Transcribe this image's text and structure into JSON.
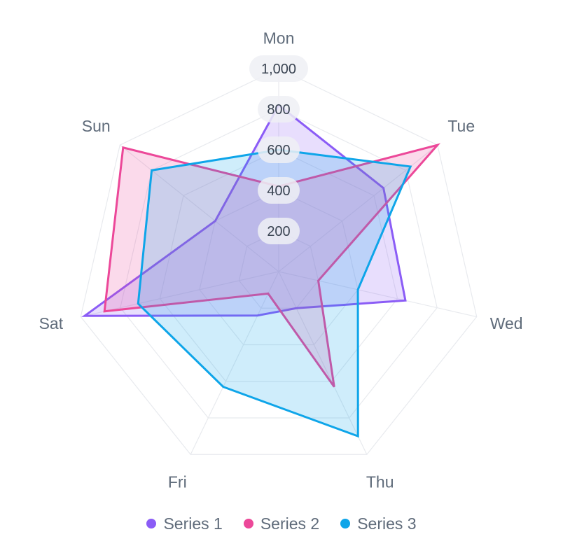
{
  "chart_data": {
    "type": "radar",
    "categories": [
      "Mon",
      "Tue",
      "Wed",
      "Thu",
      "Fri",
      "Sat",
      "Sun"
    ],
    "rlim": [
      0,
      1000
    ],
    "ticks": [
      200,
      400,
      600,
      800,
      1000
    ],
    "tick_labels": [
      "200",
      "400",
      "600",
      "800",
      "1,000"
    ],
    "grid": true,
    "legend_position": "bottom",
    "series": [
      {
        "name": "Series 1",
        "color": "#8b5cf6",
        "values": [
          820,
          660,
          640,
          200,
          240,
          980,
          400
        ]
      },
      {
        "name": "Series 2",
        "color": "#ec4899",
        "values": [
          420,
          1000,
          200,
          630,
          120,
          880,
          980
        ]
      },
      {
        "name": "Series 3",
        "color": "#0ea5e9",
        "values": [
          600,
          830,
          400,
          900,
          630,
          710,
          800
        ]
      }
    ]
  }
}
